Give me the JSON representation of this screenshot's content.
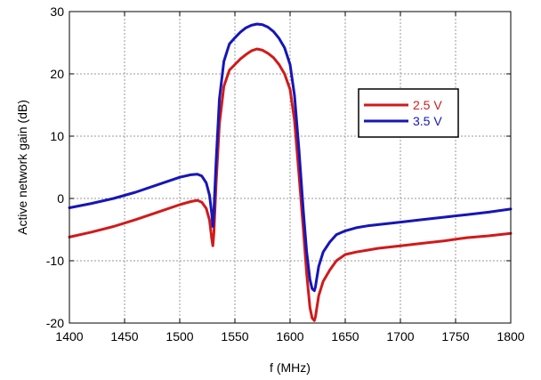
{
  "chart_data": {
    "type": "line",
    "title": "",
    "xlabel": "f (MHz)",
    "ylabel": "Active network gain (dB)",
    "xlim": [
      1400,
      1800
    ],
    "ylim": [
      -20,
      30
    ],
    "xticks": [
      1400,
      1450,
      1500,
      1550,
      1600,
      1650,
      1700,
      1750,
      1800
    ],
    "yticks": [
      -20,
      -10,
      0,
      10,
      20,
      30
    ],
    "grid": true,
    "legend_position": "center-right",
    "series": [
      {
        "name": "2.5 V",
        "color": "#d11a1a",
        "x": [
          1400,
          1420,
          1440,
          1460,
          1480,
          1500,
          1510,
          1516,
          1520,
          1524,
          1527,
          1529,
          1530,
          1531,
          1533,
          1536,
          1540,
          1545,
          1550,
          1555,
          1560,
          1565,
          1570,
          1575,
          1580,
          1585,
          1590,
          1595,
          1600,
          1604,
          1608,
          1612,
          1615,
          1618,
          1620,
          1622,
          1623,
          1624,
          1626,
          1630,
          1636,
          1642,
          1650,
          1660,
          1670,
          1680,
          1700,
          1720,
          1740,
          1760,
          1780,
          1800
        ],
        "y": [
          -6.2,
          -5.4,
          -4.5,
          -3.4,
          -2.2,
          -1.0,
          -0.5,
          -0.3,
          -0.6,
          -1.6,
          -3.5,
          -6.5,
          -7.6,
          -5.5,
          2.5,
          12.0,
          18.0,
          20.6,
          21.5,
          22.4,
          23.1,
          23.7,
          24.0,
          23.8,
          23.3,
          22.6,
          21.5,
          20.0,
          17.5,
          12.5,
          4.0,
          -5.0,
          -12.0,
          -17.5,
          -19.2,
          -19.6,
          -19.0,
          -17.8,
          -15.6,
          -13.3,
          -11.5,
          -10.0,
          -9.0,
          -8.6,
          -8.3,
          -8.0,
          -7.6,
          -7.2,
          -6.8,
          -6.3,
          -6.0,
          -5.6
        ]
      },
      {
        "name": "3.5 V",
        "color": "#1616b8",
        "x": [
          1400,
          1420,
          1440,
          1460,
          1480,
          1500,
          1510,
          1516,
          1520,
          1524,
          1527,
          1529,
          1530,
          1531,
          1533,
          1536,
          1540,
          1545,
          1550,
          1555,
          1560,
          1565,
          1570,
          1575,
          1580,
          1585,
          1590,
          1595,
          1600,
          1604,
          1608,
          1612,
          1615,
          1618,
          1620,
          1622,
          1623,
          1624,
          1626,
          1630,
          1636,
          1642,
          1650,
          1660,
          1670,
          1680,
          1700,
          1720,
          1740,
          1760,
          1780,
          1800
        ],
        "y": [
          -1.5,
          -0.8,
          0.0,
          1.0,
          2.2,
          3.4,
          3.8,
          3.9,
          3.6,
          2.5,
          0.5,
          -2.5,
          -4.5,
          -2.0,
          6.0,
          16.0,
          22.0,
          24.8,
          25.8,
          26.7,
          27.4,
          27.8,
          28.0,
          27.9,
          27.5,
          26.8,
          25.7,
          24.2,
          21.5,
          16.5,
          8.0,
          -2.0,
          -8.5,
          -13.0,
          -14.5,
          -14.8,
          -14.2,
          -13.0,
          -10.9,
          -8.6,
          -7.0,
          -5.8,
          -5.2,
          -4.7,
          -4.4,
          -4.2,
          -3.8,
          -3.4,
          -3.0,
          -2.6,
          -2.2,
          -1.7
        ]
      }
    ]
  }
}
